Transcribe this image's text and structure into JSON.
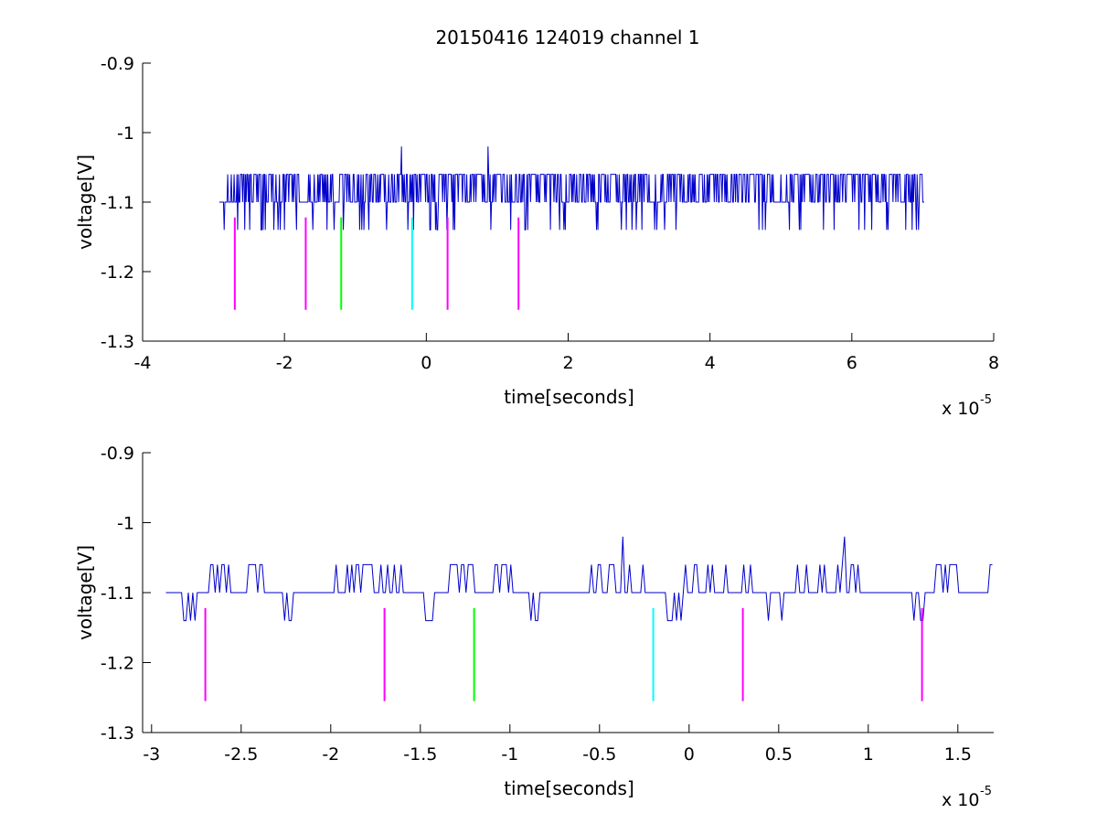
{
  "figure": {
    "title": "20150416 124019 channel 1"
  },
  "chart_data": [
    {
      "type": "line",
      "title": "20150416 124019 channel 1",
      "xlabel": "time[seconds]",
      "ylabel": "voltage[V]",
      "x_scale_label": "x 10",
      "x_scale_exponent": "-5",
      "xlim": [
        -4,
        8
      ],
      "ylim": [
        -1.3,
        -0.9
      ],
      "x_ticks": [
        -4,
        -2,
        0,
        2,
        4,
        6,
        8
      ],
      "x_tick_labels": [
        "-4",
        "-2",
        "0",
        "2",
        "4",
        "6",
        "8"
      ],
      "y_ticks": [
        -1.3,
        -1.2,
        -1.1,
        -1.0,
        -0.9
      ],
      "y_tick_labels": [
        "-1.3",
        "-1.2",
        "-1.1",
        "-1",
        "-0.9"
      ],
      "grid": false,
      "signal": {
        "color": "#0000cc",
        "x_start": -2.92,
        "x_end": 7.02,
        "baseline": -1.1,
        "high_level": -1.06,
        "low_level": -1.14,
        "dense_high_segments": [
          [
            -2.7,
            -1.8
          ],
          [
            -1.6,
            -0.6
          ],
          [
            -0.5,
            3.1
          ],
          [
            3.3,
            4.9
          ],
          [
            5.1,
            7.0
          ]
        ],
        "peaks": [
          [
            -0.35,
            -1.02
          ],
          [
            0.87,
            -1.02
          ]
        ]
      },
      "markers": [
        {
          "x": -2.7,
          "y_top": -1.122,
          "y_bottom": -1.255,
          "color": "#ff00ff"
        },
        {
          "x": -1.7,
          "y_top": -1.122,
          "y_bottom": -1.255,
          "color": "#ff00ff"
        },
        {
          "x": -1.2,
          "y_top": -1.122,
          "y_bottom": -1.255,
          "color": "#00ff00"
        },
        {
          "x": -0.2,
          "y_top": -1.122,
          "y_bottom": -1.255,
          "color": "#00ffff"
        },
        {
          "x": 0.3,
          "y_top": -1.122,
          "y_bottom": -1.255,
          "color": "#ff00ff"
        },
        {
          "x": 1.3,
          "y_top": -1.122,
          "y_bottom": -1.255,
          "color": "#ff00ff"
        }
      ]
    },
    {
      "type": "line",
      "title": "",
      "xlabel": "time[seconds]",
      "ylabel": "voltage[V]",
      "x_scale_label": "x 10",
      "x_scale_exponent": "-5",
      "xlim": [
        -3.05,
        1.7
      ],
      "ylim": [
        -1.3,
        -0.9
      ],
      "x_ticks": [
        -3,
        -2.5,
        -2,
        -1.5,
        -1,
        -0.5,
        0,
        0.5,
        1,
        1.5
      ],
      "x_tick_labels": [
        "-3",
        "-2.5",
        "-2",
        "-1.5",
        "-1",
        "-0.5",
        "0",
        "0.5",
        "1",
        "1.5"
      ],
      "y_ticks": [
        -1.3,
        -1.2,
        -1.1,
        -1.0,
        -0.9
      ],
      "y_tick_labels": [
        "-1.3",
        "-1.2",
        "-1.1",
        "-1",
        "-0.9"
      ],
      "grid": false,
      "signal": {
        "color": "#0000cc",
        "x_start": -2.92,
        "x_end": 1.7,
        "baseline": -1.1,
        "high_level": -1.06,
        "low_level": -1.14,
        "peaks": [
          [
            -0.37,
            -1.02
          ],
          [
            0.87,
            -1.02
          ]
        ]
      },
      "markers": [
        {
          "x": -2.7,
          "y_top": -1.122,
          "y_bottom": -1.255,
          "color": "#ff00ff"
        },
        {
          "x": -1.7,
          "y_top": -1.122,
          "y_bottom": -1.255,
          "color": "#ff00ff"
        },
        {
          "x": -1.2,
          "y_top": -1.122,
          "y_bottom": -1.255,
          "color": "#00ff00"
        },
        {
          "x": -0.2,
          "y_top": -1.122,
          "y_bottom": -1.255,
          "color": "#00ffff"
        },
        {
          "x": 0.3,
          "y_top": -1.122,
          "y_bottom": -1.255,
          "color": "#ff00ff"
        },
        {
          "x": 1.3,
          "y_top": -1.122,
          "y_bottom": -1.255,
          "color": "#ff00ff"
        }
      ]
    }
  ]
}
